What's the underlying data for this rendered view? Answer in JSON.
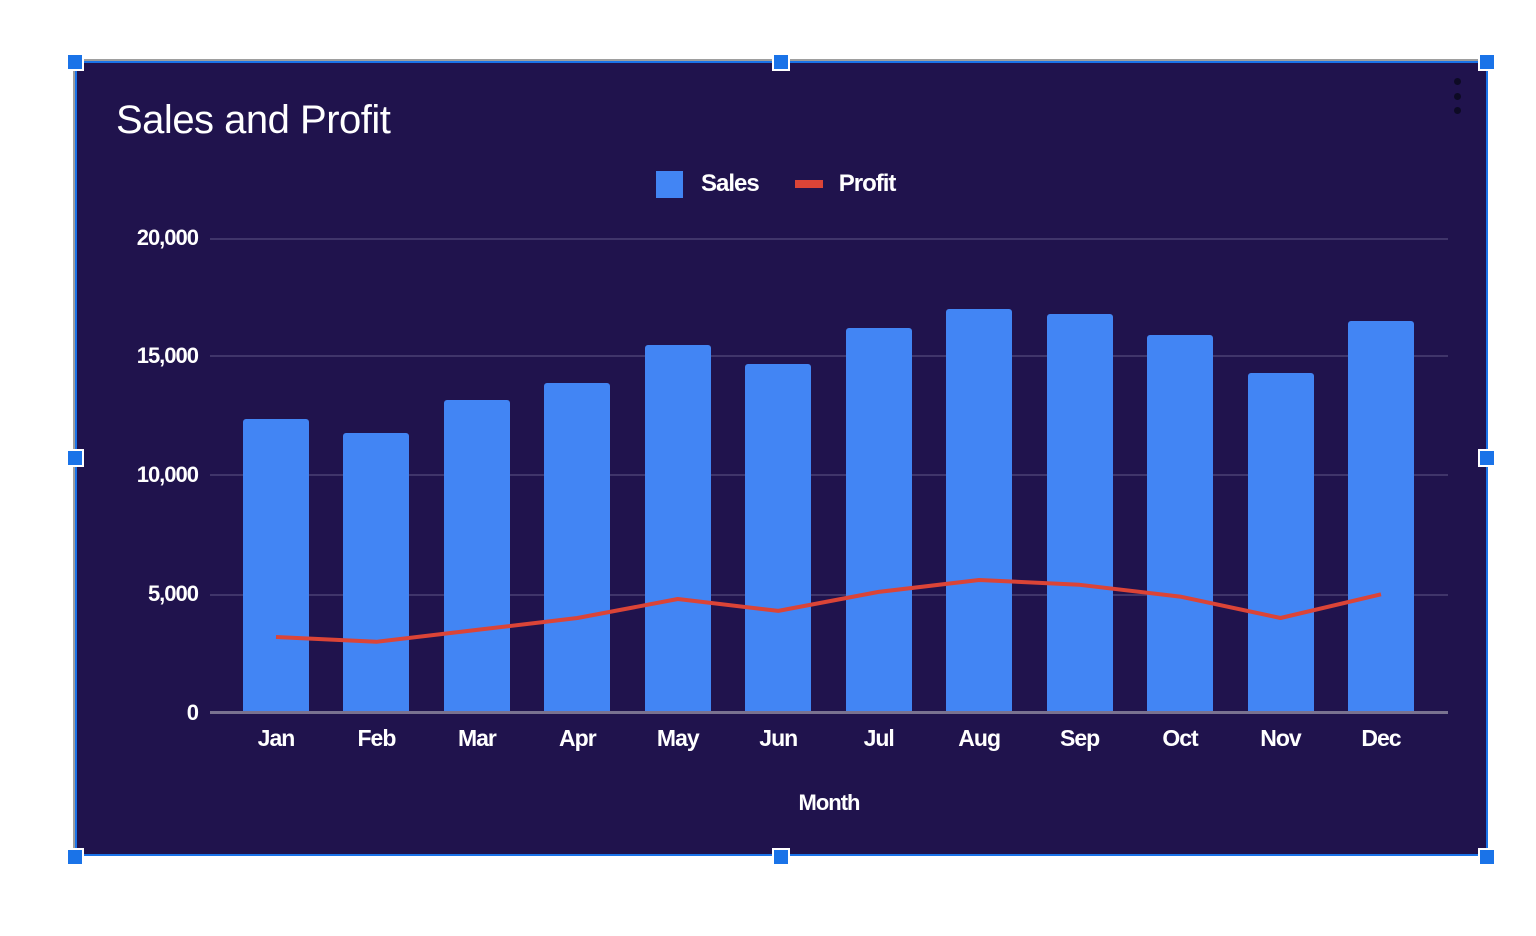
{
  "chart": {
    "title": "Sales and Profit",
    "legend": [
      {
        "label": "Sales",
        "color": "#4285f4",
        "type": "bar"
      },
      {
        "label": "Profit",
        "color": "#db4437",
        "type": "line"
      }
    ],
    "y_ticks": [
      "0",
      "5,000",
      "10,000",
      "15,000",
      "20,000"
    ],
    "x_axis_title": "Month",
    "background": "#20134d",
    "menu_icon": "more-vert-icon"
  },
  "chart_data": {
    "type": "bar",
    "title": "Sales and Profit",
    "xlabel": "Month",
    "ylabel": "",
    "ylim": [
      0,
      20000
    ],
    "grid": true,
    "legend_position": "top",
    "categories": [
      "Jan",
      "Feb",
      "Mar",
      "Apr",
      "May",
      "Jun",
      "Jul",
      "Aug",
      "Sep",
      "Oct",
      "Nov",
      "Dec"
    ],
    "series": [
      {
        "name": "Sales",
        "type": "bar",
        "color": "#4285f4",
        "values": [
          12400,
          11800,
          13200,
          13900,
          15500,
          14700,
          16200,
          17000,
          16800,
          15900,
          14300,
          16500
        ]
      },
      {
        "name": "Profit",
        "type": "line",
        "color": "#db4437",
        "values": [
          3200,
          3000,
          3500,
          4000,
          4800,
          4300,
          5100,
          5600,
          5400,
          4900,
          4000,
          5000
        ]
      }
    ]
  }
}
